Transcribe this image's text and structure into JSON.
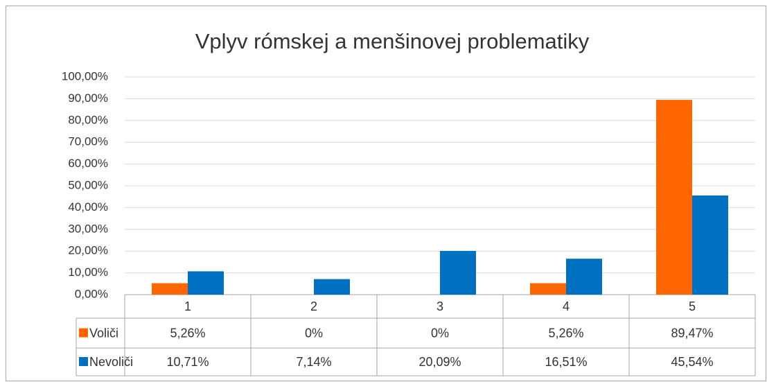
{
  "chart_data": {
    "type": "bar",
    "title": "Vplyv rómskej  a menšinovej problematiky",
    "categories": [
      "1",
      "2",
      "3",
      "4",
      "5"
    ],
    "series": [
      {
        "name": "Voliči",
        "color": "#ff6600",
        "values": [
          5.26,
          0,
          0,
          5.26,
          89.47
        ],
        "value_labels": [
          "5,26%",
          "0%",
          "0%",
          "5,26%",
          "89,47%"
        ]
      },
      {
        "name": "Nevoliči",
        "color": "#0070c0",
        "values": [
          10.71,
          7.14,
          20.09,
          16.51,
          45.54
        ],
        "value_labels": [
          "10,71%",
          "7,14%",
          "20,09%",
          "16,51%",
          "45,54%"
        ]
      }
    ],
    "ylim": [
      0,
      100
    ],
    "yticks": [
      {
        "value": 0,
        "label": "0,00%"
      },
      {
        "value": 10,
        "label": "10,00%"
      },
      {
        "value": 20,
        "label": "20,00%"
      },
      {
        "value": 30,
        "label": "30,00%"
      },
      {
        "value": 40,
        "label": "40,00%"
      },
      {
        "value": 50,
        "label": "50,00%"
      },
      {
        "value": 60,
        "label": "60,00%"
      },
      {
        "value": 70,
        "label": "70,00%"
      },
      {
        "value": 80,
        "label": "80,00%"
      },
      {
        "value": 90,
        "label": "90,00%"
      },
      {
        "value": 100,
        "label": "100,00%"
      }
    ],
    "grid": true
  }
}
